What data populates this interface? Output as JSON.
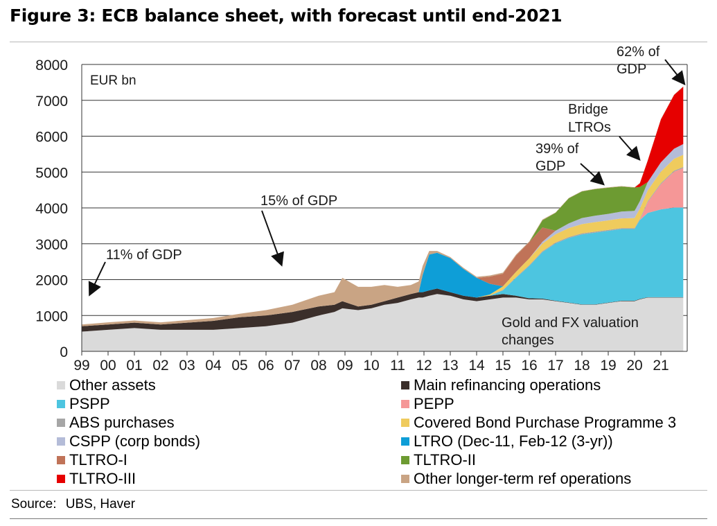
{
  "title": "Figure 3: ECB balance sheet, with forecast until end-2021",
  "source": {
    "label": "Source:",
    "value": "UBS, Haver"
  },
  "chart_data": {
    "type": "area",
    "stacked": true,
    "title": "Figure 3: ECB balance sheet, with forecast until end-2021",
    "unit_label": "EUR bn",
    "ylim": [
      0,
      8000
    ],
    "yticks": [
      0,
      1000,
      2000,
      3000,
      4000,
      5000,
      6000,
      7000,
      8000
    ],
    "xlim": [
      1999,
      2022
    ],
    "xtick_labels": [
      "99",
      "00",
      "01",
      "02",
      "03",
      "04",
      "05",
      "06",
      "07",
      "08",
      "09",
      "10",
      "11",
      "12",
      "13",
      "14",
      "15",
      "16",
      "17",
      "18",
      "19",
      "20",
      "21"
    ],
    "grid": "horizontal",
    "legend_position": "bottom",
    "x": [
      1999,
      2000,
      2001,
      2002,
      2003,
      2004,
      2005,
      2006,
      2007,
      2008,
      2008.6,
      2008.9,
      2009.5,
      2010,
      2010.5,
      2011,
      2011.5,
      2011.8,
      2011.95,
      2012.2,
      2012.5,
      2013,
      2013.5,
      2014,
      2014.5,
      2015,
      2015.5,
      2016,
      2016.5,
      2017,
      2017.5,
      2018,
      2018.5,
      2019,
      2019.5,
      2020,
      2020.2,
      2020.5,
      2021,
      2021.5,
      2021.85
    ],
    "series": [
      {
        "name": "Other assets",
        "color": "#dadada",
        "values": [
          550,
          600,
          650,
          600,
          600,
          600,
          650,
          700,
          800,
          1000,
          1100,
          1200,
          1150,
          1200,
          1300,
          1350,
          1450,
          1500,
          1500,
          1550,
          1600,
          1550,
          1450,
          1400,
          1450,
          1500,
          1500,
          1450,
          1450,
          1400,
          1350,
          1300,
          1300,
          1350,
          1400,
          1400,
          1450,
          1500,
          1500,
          1500,
          1500
        ]
      },
      {
        "name": "Main refinancing operations",
        "color": "#3b2f2b",
        "values": [
          150,
          150,
          150,
          150,
          200,
          250,
          300,
          300,
          300,
          250,
          200,
          200,
          100,
          100,
          100,
          150,
          150,
          150,
          150,
          150,
          150,
          100,
          100,
          100,
          100,
          100,
          50,
          30,
          20,
          10,
          10,
          10,
          10,
          10,
          10,
          10,
          10,
          10,
          10,
          10,
          10
        ]
      },
      {
        "name": "PSPP",
        "color": "#4dc5e0",
        "values": [
          0,
          0,
          0,
          0,
          0,
          0,
          0,
          0,
          0,
          0,
          0,
          0,
          0,
          0,
          0,
          0,
          0,
          0,
          0,
          0,
          0,
          0,
          0,
          0,
          0,
          100,
          500,
          900,
          1300,
          1600,
          1800,
          1950,
          2000,
          2000,
          2000,
          2000,
          2200,
          2350,
          2450,
          2500,
          2500
        ]
      },
      {
        "name": "PEPP",
        "color": "#f59797",
        "values": [
          0,
          0,
          0,
          0,
          0,
          0,
          0,
          0,
          0,
          0,
          0,
          0,
          0,
          0,
          0,
          0,
          0,
          0,
          0,
          0,
          0,
          0,
          0,
          0,
          0,
          0,
          0,
          0,
          0,
          0,
          0,
          0,
          0,
          0,
          0,
          0,
          0,
          300,
          700,
          1000,
          1100
        ]
      },
      {
        "name": "ABS purchases",
        "color": "#a6a6a6",
        "values": [
          0,
          0,
          0,
          0,
          0,
          0,
          0,
          0,
          0,
          0,
          0,
          0,
          0,
          0,
          0,
          0,
          0,
          0,
          0,
          0,
          0,
          0,
          0,
          0,
          5,
          15,
          20,
          25,
          25,
          25,
          28,
          28,
          28,
          28,
          28,
          28,
          30,
          30,
          30,
          30,
          30
        ]
      },
      {
        "name": "Covered Bond Purchase Programme 3",
        "color": "#efcb5d",
        "values": [
          0,
          0,
          0,
          0,
          0,
          0,
          0,
          0,
          0,
          0,
          0,
          0,
          0,
          0,
          0,
          0,
          0,
          0,
          0,
          0,
          0,
          0,
          0,
          0,
          30,
          100,
          150,
          190,
          210,
          230,
          250,
          260,
          265,
          265,
          270,
          280,
          285,
          300,
          320,
          330,
          340
        ]
      },
      {
        "name": "CSPP (corp bonds)",
        "color": "#b4bcd8",
        "values": [
          0,
          0,
          0,
          0,
          0,
          0,
          0,
          0,
          0,
          0,
          0,
          0,
          0,
          0,
          0,
          0,
          0,
          0,
          0,
          0,
          0,
          0,
          0,
          0,
          0,
          0,
          0,
          0,
          50,
          100,
          130,
          170,
          180,
          180,
          190,
          200,
          210,
          230,
          260,
          280,
          300
        ]
      },
      {
        "name": "LTRO (Dec-11, Feb-12 (3-yr))",
        "color": "#0e9ed7",
        "values": [
          0,
          0,
          0,
          0,
          0,
          0,
          0,
          0,
          0,
          0,
          0,
          0,
          0,
          0,
          0,
          0,
          0,
          0,
          480,
          1000,
          1000,
          950,
          750,
          550,
          300,
          0,
          0,
          0,
          0,
          0,
          0,
          0,
          0,
          0,
          0,
          0,
          0,
          0,
          0,
          0,
          0
        ]
      },
      {
        "name": "TLTRO-I",
        "color": "#c07358",
        "values": [
          0,
          0,
          0,
          0,
          0,
          0,
          0,
          0,
          0,
          0,
          0,
          0,
          0,
          0,
          0,
          0,
          0,
          0,
          0,
          0,
          0,
          0,
          0,
          0,
          200,
          350,
          450,
          450,
          400,
          0,
          0,
          0,
          0,
          0,
          0,
          0,
          0,
          0,
          0,
          0,
          0
        ]
      },
      {
        "name": "TLTRO-II",
        "color": "#6d9b32",
        "values": [
          0,
          0,
          0,
          0,
          0,
          0,
          0,
          0,
          0,
          0,
          0,
          0,
          0,
          0,
          0,
          0,
          0,
          0,
          0,
          0,
          0,
          0,
          0,
          0,
          0,
          0,
          0,
          0,
          200,
          500,
          700,
          740,
          740,
          730,
          700,
          650,
          400,
          0,
          0,
          0,
          0
        ]
      },
      {
        "name": "TLTRO-III",
        "color": "#e60000",
        "values": [
          0,
          0,
          0,
          0,
          0,
          0,
          0,
          0,
          0,
          0,
          0,
          0,
          0,
          0,
          0,
          0,
          0,
          0,
          0,
          0,
          0,
          0,
          0,
          0,
          0,
          0,
          0,
          0,
          0,
          0,
          0,
          0,
          0,
          0,
          0,
          0,
          100,
          600,
          1200,
          1500,
          1600
        ]
      },
      {
        "name": "Other longer-term ref operations",
        "color": "#c9a484",
        "values": [
          50,
          60,
          60,
          60,
          70,
          80,
          100,
          150,
          200,
          300,
          350,
          650,
          550,
          500,
          450,
          300,
          250,
          300,
          250,
          100,
          50,
          30,
          30,
          30,
          30,
          30,
          30,
          20,
          20,
          10,
          10,
          10,
          10,
          10,
          10,
          10,
          10,
          10,
          10,
          10,
          10
        ]
      }
    ],
    "annotations": [
      {
        "text": "11% of GDP"
      },
      {
        "text": "15% of GDP"
      },
      {
        "text": "39% of GDP"
      },
      {
        "text": "Bridge LTROs"
      },
      {
        "text": "62% of GDP"
      },
      {
        "text": "Gold and FX valuation changes"
      }
    ],
    "legend_order": [
      "Other assets",
      "Main refinancing operations",
      "PSPP",
      "PEPP",
      "ABS purchases",
      "Covered Bond Purchase Programme 3",
      "CSPP (corp bonds)",
      "LTRO (Dec-11, Feb-12 (3-yr))",
      "TLTRO-I",
      "TLTRO-II",
      "TLTRO-III",
      "Other longer-term ref operations"
    ]
  }
}
